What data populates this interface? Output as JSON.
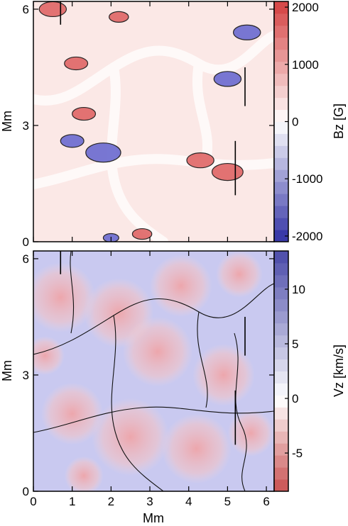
{
  "chart_data": [
    {
      "type": "heatmap",
      "title": "",
      "xlabel": "",
      "ylabel": "Mm",
      "xlim": [
        0,
        6.2
      ],
      "ylim": [
        0,
        6.2
      ],
      "y_ticks": [
        0,
        3,
        6
      ],
      "colorbar": {
        "label": "Bz [G]",
        "range": [
          -2100,
          2100
        ],
        "ticks": [
          2000,
          1000,
          0,
          -1000,
          -2000
        ],
        "colors": {
          "negative": "#3a3aa8",
          "zero": "#ffffff",
          "positive": "#d64a4a",
          "max": "#f2d83a"
        }
      },
      "field_patches": [
        {
          "kind": "positive",
          "x": 0.5,
          "y": 6.0,
          "r": 0.35
        },
        {
          "kind": "positive",
          "x": 2.2,
          "y": 5.8,
          "r": 0.25
        },
        {
          "kind": "positive",
          "x": 1.1,
          "y": 4.6,
          "r": 0.3
        },
        {
          "kind": "positive",
          "x": 1.3,
          "y": 3.3,
          "r": 0.3
        },
        {
          "kind": "positive",
          "x": 4.3,
          "y": 2.1,
          "r": 0.35
        },
        {
          "kind": "positive",
          "x": 5.0,
          "y": 1.8,
          "r": 0.4
        },
        {
          "kind": "positive",
          "x": 2.8,
          "y": 0.2,
          "r": 0.25
        },
        {
          "kind": "negative",
          "x": 5.5,
          "y": 5.4,
          "r": 0.35
        },
        {
          "kind": "negative",
          "x": 5.0,
          "y": 4.2,
          "r": 0.35
        },
        {
          "kind": "negative",
          "x": 1.8,
          "y": 2.3,
          "r": 0.45
        },
        {
          "kind": "negative",
          "x": 1.0,
          "y": 2.6,
          "r": 0.3
        },
        {
          "kind": "negative",
          "x": 2.0,
          "y": 0.1,
          "r": 0.2
        }
      ],
      "markers": [
        {
          "x": 0.7,
          "y0": 5.6,
          "y1": 6.2
        },
        {
          "x": 5.45,
          "y0": 3.5,
          "y1": 4.5
        },
        {
          "x": 5.2,
          "y0": 1.2,
          "y1": 2.6
        }
      ]
    },
    {
      "type": "heatmap",
      "title": "",
      "xlabel": "Mm",
      "ylabel": "Mm",
      "xlim": [
        0,
        6.2
      ],
      "ylim": [
        0,
        6.2
      ],
      "x_ticks": [
        0,
        1,
        2,
        3,
        4,
        5,
        6
      ],
      "y_ticks": [
        0,
        3,
        6
      ],
      "colorbar": {
        "label": "Vz [km/s]",
        "range": [
          -8.5,
          13.5
        ],
        "ticks": [
          10,
          5,
          0,
          -5
        ],
        "colors": {
          "upflow": "#4a4aa8",
          "zero": "#ffffff",
          "downflow": "#c85050"
        }
      },
      "granules": [
        {
          "x": 0.7,
          "y": 5.0,
          "r": 0.9
        },
        {
          "x": 2.2,
          "y": 4.6,
          "r": 0.9
        },
        {
          "x": 3.8,
          "y": 5.3,
          "r": 0.8
        },
        {
          "x": 5.3,
          "y": 5.6,
          "r": 0.6
        },
        {
          "x": 3.2,
          "y": 3.6,
          "r": 0.9
        },
        {
          "x": 4.9,
          "y": 3.0,
          "r": 0.8
        },
        {
          "x": 1.0,
          "y": 2.0,
          "r": 0.8
        },
        {
          "x": 2.5,
          "y": 1.4,
          "r": 1.0
        },
        {
          "x": 4.2,
          "y": 1.1,
          "r": 0.9
        },
        {
          "x": 5.6,
          "y": 1.5,
          "r": 0.6
        },
        {
          "x": 1.3,
          "y": 0.4,
          "r": 0.5
        },
        {
          "x": 0.3,
          "y": 3.5,
          "r": 0.5
        }
      ],
      "markers": [
        {
          "x": 0.7,
          "y0": 5.6,
          "y1": 6.2
        },
        {
          "x": 5.45,
          "y0": 3.5,
          "y1": 4.5
        },
        {
          "x": 5.2,
          "y0": 1.2,
          "y1": 2.6
        }
      ]
    }
  ]
}
